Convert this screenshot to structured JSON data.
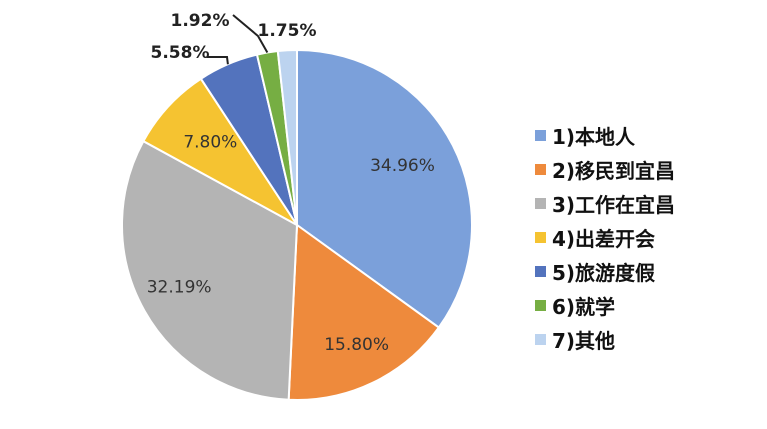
{
  "chart_data": {
    "type": "pie",
    "slices": [
      {
        "label": "1)本地人",
        "value": 34.96,
        "display": "34.96%",
        "color": "#7BA0DA"
      },
      {
        "label": "2)移民到宜昌",
        "value": 15.8,
        "display": "15.80%",
        "color": "#EE8A3C"
      },
      {
        "label": "3)工作在宜昌",
        "value": 32.19,
        "display": "32.19%",
        "color": "#B4B4B4"
      },
      {
        "label": "4)出差开会",
        "value": 7.8,
        "display": "7.80%",
        "color": "#F5C331"
      },
      {
        "label": "5)旅游度假",
        "value": 5.58,
        "display": "5.58%",
        "color": "#5373BD"
      },
      {
        "label": "6)就学",
        "value": 1.92,
        "display": "1.92%",
        "color": "#76AE43"
      },
      {
        "label": "7)其他",
        "value": 1.75,
        "display": "1.75%",
        "color": "#BCD3EF"
      }
    ],
    "legend_position": "right"
  }
}
